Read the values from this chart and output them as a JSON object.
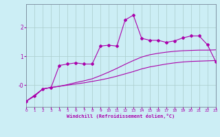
{
  "xlabel": "Windchill (Refroidissement éolien,°C)",
  "bg_color": "#cceef5",
  "grid_color": "#aacccc",
  "line_color": "#aa00aa",
  "x_ticks": [
    0,
    1,
    2,
    3,
    4,
    5,
    6,
    7,
    8,
    9,
    10,
    11,
    12,
    13,
    14,
    15,
    16,
    17,
    18,
    19,
    20,
    21,
    22,
    23
  ],
  "y_ticks": [
    0,
    1,
    2
  ],
  "ylim": [
    -0.75,
    2.8
  ],
  "xlim": [
    0,
    23
  ],
  "series1_x": [
    0,
    1,
    2,
    3,
    4,
    5,
    6,
    7,
    8,
    9,
    10,
    11,
    12,
    13,
    14,
    15,
    16,
    17,
    18,
    19,
    20,
    21,
    22,
    23
  ],
  "series1_y": [
    -0.55,
    -0.35,
    -0.13,
    -0.08,
    -0.04,
    0.0,
    0.04,
    0.08,
    0.13,
    0.18,
    0.24,
    0.31,
    0.39,
    0.47,
    0.56,
    0.63,
    0.68,
    0.73,
    0.77,
    0.8,
    0.82,
    0.83,
    0.84,
    0.85
  ],
  "series2_x": [
    0,
    1,
    2,
    3,
    4,
    5,
    6,
    7,
    8,
    9,
    10,
    11,
    12,
    13,
    14,
    15,
    16,
    17,
    18,
    19,
    20,
    21,
    22,
    23
  ],
  "series2_y": [
    -0.55,
    -0.35,
    -0.13,
    -0.08,
    -0.04,
    0.02,
    0.09,
    0.15,
    0.22,
    0.33,
    0.45,
    0.58,
    0.72,
    0.85,
    0.97,
    1.05,
    1.1,
    1.14,
    1.17,
    1.19,
    1.2,
    1.21,
    1.21,
    1.22
  ],
  "series3_x": [
    0,
    1,
    2,
    3,
    4,
    5,
    6,
    7,
    8,
    9,
    10,
    11,
    12,
    13,
    14,
    15,
    16,
    17,
    18,
    19,
    20,
    21,
    22,
    23
  ],
  "series3_y": [
    -0.55,
    -0.38,
    -0.13,
    -0.08,
    0.68,
    0.73,
    0.77,
    0.73,
    0.73,
    1.35,
    1.38,
    1.35,
    2.25,
    2.42,
    1.62,
    1.55,
    1.55,
    1.48,
    1.53,
    1.63,
    1.7,
    1.7,
    1.4,
    0.82
  ]
}
